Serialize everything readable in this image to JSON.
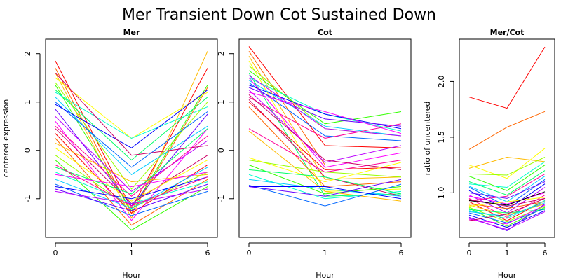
{
  "title": "Mer Transient Down Cot Sustained Down",
  "palette": [
    "#ff0000",
    "#ff6600",
    "#ffbb00",
    "#ffff00",
    "#99ff00",
    "#33ff00",
    "#00ff66",
    "#00ffcc",
    "#00ccff",
    "#0066ff",
    "#0000ff",
    "#6600ff",
    "#bb00ff",
    "#ff00ff",
    "#ff0099",
    "#cc0066"
  ],
  "chart_data": [
    {
      "type": "line",
      "title": "Mer",
      "xlabel": "Hour",
      "ylabel": "centered expression",
      "x": [
        "0",
        "1",
        "6"
      ],
      "ylim": [
        -1.8,
        2.3
      ],
      "yticks": [
        -1,
        0,
        1,
        2
      ],
      "series": [
        {
          "values": [
            1.85,
            -1.2,
            1.7
          ]
        },
        {
          "values": [
            1.7,
            -1.3,
            1.3
          ]
        },
        {
          "values": [
            1.6,
            -1.4,
            2.05
          ]
        },
        {
          "values": [
            1.5,
            0.25,
            1.2
          ]
        },
        {
          "values": [
            1.4,
            -0.8,
            1.0
          ]
        },
        {
          "values": [
            1.35,
            -1.25,
            1.35
          ]
        },
        {
          "values": [
            1.25,
            -0.2,
            1.1
          ]
        },
        {
          "values": [
            1.2,
            0.25,
            0.9
          ]
        },
        {
          "values": [
            1.1,
            -0.5,
            0.5
          ]
        },
        {
          "values": [
            1.0,
            -0.35,
            0.8
          ]
        },
        {
          "values": [
            0.95,
            0.05,
            1.25
          ]
        },
        {
          "values": [
            0.85,
            -1.15,
            0.75
          ]
        },
        {
          "values": [
            0.7,
            -0.85,
            0.2
          ]
        },
        {
          "values": [
            0.6,
            -1.45,
            0.45
          ]
        },
        {
          "values": [
            0.5,
            -0.95,
            0.3
          ]
        },
        {
          "values": [
            0.45,
            -1.1,
            -0.1
          ]
        },
        {
          "values": [
            0.35,
            -1.3,
            -0.3
          ]
        },
        {
          "values": [
            0.25,
            -1.55,
            -0.6
          ]
        },
        {
          "values": [
            0.15,
            -0.65,
            -0.5
          ]
        },
        {
          "values": [
            0.05,
            -1.05,
            -0.2
          ]
        },
        {
          "values": [
            -0.1,
            -1.2,
            -0.45
          ]
        },
        {
          "values": [
            -0.2,
            -1.65,
            -0.75
          ]
        },
        {
          "values": [
            -0.35,
            -0.9,
            0.45
          ]
        },
        {
          "values": [
            -0.45,
            -1.1,
            -0.65
          ]
        },
        {
          "values": [
            -0.6,
            -1.2,
            -0.35
          ]
        },
        {
          "values": [
            -0.7,
            -1.35,
            -0.85
          ]
        },
        {
          "values": [
            -0.75,
            -1.0,
            -0.55
          ]
        },
        {
          "values": [
            -0.8,
            -1.25,
            -0.7
          ]
        },
        {
          "values": [
            -0.85,
            -1.1,
            -0.8
          ]
        },
        {
          "values": [
            -0.5,
            -0.75,
            -0.45
          ]
        },
        {
          "values": [
            -0.3,
            -1.15,
            -0.55
          ]
        },
        {
          "values": [
            1.6,
            -0.1,
            0.1
          ]
        }
      ]
    },
    {
      "type": "line",
      "title": "Cot",
      "xlabel": "Hour",
      "ylabel": "",
      "x": [
        "0",
        "1",
        "6"
      ],
      "ylim": [
        -1.8,
        2.3
      ],
      "yticks": [
        -1,
        0,
        1,
        2
      ],
      "series": [
        {
          "values": [
            2.15,
            0.1,
            0.05
          ]
        },
        {
          "values": [
            2.05,
            -0.3,
            -0.3
          ]
        },
        {
          "values": [
            1.95,
            -0.6,
            -0.55
          ]
        },
        {
          "values": [
            1.85,
            -0.85,
            -0.8
          ]
        },
        {
          "values": [
            1.75,
            0.45,
            0.3
          ]
        },
        {
          "values": [
            1.65,
            0.55,
            0.8
          ]
        },
        {
          "values": [
            1.6,
            -0.95,
            -0.9
          ]
        },
        {
          "values": [
            1.5,
            0.75,
            0.4
          ]
        },
        {
          "values": [
            1.45,
            0.5,
            0.3
          ]
        },
        {
          "values": [
            1.4,
            0.3,
            0.2
          ]
        },
        {
          "values": [
            1.35,
            0.75,
            0.45
          ]
        },
        {
          "values": [
            1.3,
            0.65,
            0.5
          ]
        },
        {
          "values": [
            1.25,
            -0.25,
            0.1
          ]
        },
        {
          "values": [
            1.2,
            0.8,
            0.35
          ]
        },
        {
          "values": [
            1.1,
            0.25,
            0.55
          ]
        },
        {
          "values": [
            1.05,
            -0.55,
            -0.95
          ]
        },
        {
          "values": [
            1.0,
            -0.4,
            -0.35
          ]
        },
        {
          "values": [
            0.9,
            -0.75,
            -0.65
          ]
        },
        {
          "values": [
            0.4,
            -0.85,
            -1.05
          ]
        },
        {
          "values": [
            -0.15,
            -0.65,
            -0.25
          ]
        },
        {
          "values": [
            -0.2,
            -0.45,
            -0.55
          ]
        },
        {
          "values": [
            -0.3,
            -0.9,
            -0.75
          ]
        },
        {
          "values": [
            -0.4,
            -0.55,
            -0.9
          ]
        },
        {
          "values": [
            -0.5,
            -1.0,
            -0.85
          ]
        },
        {
          "values": [
            -0.6,
            -0.8,
            -0.95
          ]
        },
        {
          "values": [
            -0.72,
            -1.15,
            -0.7
          ]
        },
        {
          "values": [
            -0.75,
            -0.75,
            -1.0
          ]
        },
        {
          "values": [
            -0.75,
            -0.95,
            -0.6
          ]
        },
        {
          "values": [
            1.55,
            0.45,
            0.3
          ]
        },
        {
          "values": [
            1.5,
            -0.35,
            -0.05
          ]
        },
        {
          "values": [
            0.45,
            -0.45,
            -0.2
          ]
        },
        {
          "values": [
            1.15,
            -0.2,
            -0.4
          ]
        }
      ]
    },
    {
      "type": "line",
      "title": "Mer/Cot",
      "xlabel": "Hour",
      "ylabel": "ratio of uncentered",
      "x": [
        "0",
        "1",
        "6"
      ],
      "ylim": [
        0.6,
        2.38
      ],
      "yticks": [
        1.0,
        1.5,
        2.0
      ],
      "ytick_labels": [
        "1.0",
        "1.5",
        "2.0"
      ],
      "series": [
        {
          "values": [
            1.86,
            1.76,
            2.31
          ]
        },
        {
          "values": [
            1.39,
            1.59,
            1.73
          ]
        },
        {
          "values": [
            1.22,
            1.32,
            1.28
          ]
        },
        {
          "values": [
            1.25,
            1.13,
            1.4
          ]
        },
        {
          "values": [
            1.17,
            1.16,
            1.32
          ]
        },
        {
          "values": [
            1.15,
            1.02,
            1.25
          ]
        },
        {
          "values": [
            1.1,
            0.98,
            1.2
          ]
        },
        {
          "values": [
            1.08,
            1.05,
            1.28
          ]
        },
        {
          "values": [
            1.06,
            0.92,
            1.15
          ]
        },
        {
          "values": [
            1.05,
            0.88,
            1.12
          ]
        },
        {
          "values": [
            1.02,
            0.85,
            1.08
          ]
        },
        {
          "values": [
            1.0,
            0.95,
            1.1
          ]
        },
        {
          "values": [
            0.98,
            0.82,
            1.05
          ]
        },
        {
          "values": [
            0.97,
            0.9,
            1.0
          ]
        },
        {
          "values": [
            0.95,
            0.78,
            0.98
          ]
        },
        {
          "values": [
            0.94,
            0.88,
            0.95
          ]
        },
        {
          "values": [
            0.92,
            0.75,
            0.93
          ]
        },
        {
          "values": [
            0.9,
            0.86,
            0.92
          ]
        },
        {
          "values": [
            0.89,
            0.8,
            0.9
          ]
        },
        {
          "values": [
            0.88,
            0.92,
            0.96
          ]
        },
        {
          "values": [
            0.87,
            0.74,
            0.88
          ]
        },
        {
          "values": [
            0.86,
            0.7,
            0.87
          ]
        },
        {
          "values": [
            0.85,
            0.82,
            0.85
          ]
        },
        {
          "values": [
            0.84,
            0.77,
            0.93
          ]
        },
        {
          "values": [
            0.83,
            0.79,
            0.91
          ]
        },
        {
          "values": [
            0.82,
            0.73,
            0.86
          ]
        },
        {
          "values": [
            0.8,
            0.69,
            0.84
          ]
        },
        {
          "values": [
            0.78,
            0.66,
            0.9
          ]
        },
        {
          "values": [
            0.77,
            0.67,
            0.83
          ]
        },
        {
          "values": [
            0.76,
            0.72,
            0.89
          ]
        },
        {
          "values": [
            0.93,
            0.97,
            1.17
          ]
        },
        {
          "values": [
            0.75,
            0.81,
            0.95
          ]
        },
        {
          "values": [
            0.93,
            0.89,
            1.01
          ],
          "color": "#000000",
          "emphasis": true
        }
      ]
    }
  ]
}
